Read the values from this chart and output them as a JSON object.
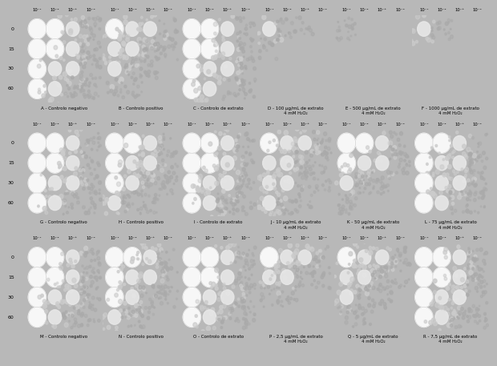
{
  "figure_bg": "#b8b8b8",
  "panel_bg": "#000000",
  "rows": 3,
  "cols": 6,
  "dilutions": [
    "10⁻¹",
    "10⁻²",
    "10⁻³",
    "10⁻⁴"
  ],
  "time_labels": [
    "0",
    "15",
    "30",
    "60"
  ],
  "panel_labels": [
    [
      "A - Controlo negativo",
      "B - Controlo positivo",
      "C - Controlo de extrato",
      "D - 100 μg/mL de extrato\n4 mM H₂O₂",
      "E - 500 μg/mL de extrato\n4 mM H₂O₂",
      "F - 1000 μg/mL de extrato\n4 mM H₂O₂"
    ],
    [
      "G - Controlo negativo",
      "H - Controlo positivo",
      "I - Controlo de extrato",
      "J - 10 μg/mL de extrato\n4 mM H₂O₂",
      "K - 50 μg/mL de extrato\n4 mM H₂O₂",
      "L - 75 μg/mL de extrato\n4 mM H₂O₂"
    ],
    [
      "M - Controlo negativo",
      "N - Controlo positivo",
      "O - Controlo de extrato",
      "P - 2,5 μg/mL de extrato\n4 mM H₂O₂",
      "Q - 5 μg/mL de extrato\n4 mM H₂O₂",
      "R - 7,5 μg/mL de extrato\n4 mM H₂O₂"
    ]
  ],
  "colony_data": [
    [
      [
        [
          3,
          3,
          2,
          1
        ],
        [
          3,
          3,
          2,
          1
        ],
        [
          3,
          2,
          2,
          1
        ],
        [
          3,
          2,
          1,
          1
        ]
      ],
      [
        [
          3,
          2,
          2,
          1
        ],
        [
          2,
          2,
          1,
          1
        ],
        [
          2,
          1,
          1,
          0
        ],
        [
          1,
          1,
          0,
          0
        ]
      ],
      [
        [
          3,
          3,
          2,
          1
        ],
        [
          3,
          3,
          2,
          1
        ],
        [
          3,
          2,
          2,
          1
        ],
        [
          3,
          2,
          1,
          1
        ]
      ],
      [
        [
          2,
          1,
          1,
          0
        ],
        [
          1,
          0,
          0,
          0
        ],
        [
          0,
          0,
          0,
          0
        ],
        [
          0,
          0,
          0,
          0
        ]
      ],
      [
        [
          1,
          0,
          0,
          0
        ],
        [
          0,
          0,
          0,
          0
        ],
        [
          0,
          0,
          0,
          0
        ],
        [
          0,
          0,
          0,
          0
        ]
      ],
      [
        [
          2,
          1,
          0,
          0
        ],
        [
          0,
          0,
          0,
          0
        ],
        [
          0,
          0,
          0,
          0
        ],
        [
          0,
          0,
          0,
          0
        ]
      ]
    ],
    [
      [
        [
          3,
          3,
          2,
          1
        ],
        [
          3,
          3,
          2,
          1
        ],
        [
          3,
          2,
          2,
          1
        ],
        [
          3,
          2,
          1,
          1
        ]
      ],
      [
        [
          3,
          3,
          2,
          1
        ],
        [
          3,
          2,
          2,
          1
        ],
        [
          3,
          2,
          1,
          1
        ],
        [
          2,
          1,
          1,
          0
        ]
      ],
      [
        [
          3,
          3,
          2,
          1
        ],
        [
          3,
          3,
          2,
          1
        ],
        [
          3,
          2,
          2,
          1
        ],
        [
          3,
          2,
          1,
          1
        ]
      ],
      [
        [
          3,
          2,
          2,
          1
        ],
        [
          2,
          2,
          1,
          1
        ],
        [
          2,
          2,
          1,
          1
        ],
        [
          2,
          1,
          1,
          0
        ]
      ],
      [
        [
          3,
          3,
          2,
          1
        ],
        [
          3,
          2,
          2,
          1
        ],
        [
          2,
          1,
          1,
          0
        ],
        [
          1,
          0,
          0,
          0
        ]
      ],
      [
        [
          3,
          3,
          2,
          1
        ],
        [
          3,
          2,
          2,
          1
        ],
        [
          3,
          2,
          2,
          1
        ],
        [
          3,
          2,
          1,
          1
        ]
      ]
    ],
    [
      [
        [
          3,
          3,
          2,
          1
        ],
        [
          3,
          3,
          2,
          1
        ],
        [
          3,
          2,
          2,
          1
        ],
        [
          3,
          2,
          1,
          1
        ]
      ],
      [
        [
          3,
          3,
          2,
          1
        ],
        [
          3,
          2,
          2,
          1
        ],
        [
          3,
          2,
          1,
          1
        ],
        [
          2,
          1,
          1,
          0
        ]
      ],
      [
        [
          3,
          3,
          2,
          1
        ],
        [
          3,
          3,
          2,
          1
        ],
        [
          3,
          2,
          2,
          1
        ],
        [
          3,
          2,
          1,
          1
        ]
      ],
      [
        [
          3,
          2,
          2,
          1
        ],
        [
          2,
          2,
          1,
          1
        ],
        [
          1,
          1,
          0,
          0
        ],
        [
          0,
          0,
          0,
          0
        ]
      ],
      [
        [
          3,
          2,
          2,
          1
        ],
        [
          2,
          2,
          1,
          1
        ],
        [
          2,
          1,
          1,
          0
        ],
        [
          1,
          1,
          0,
          0
        ]
      ],
      [
        [
          3,
          3,
          2,
          1
        ],
        [
          3,
          3,
          2,
          1
        ],
        [
          3,
          2,
          2,
          1
        ],
        [
          3,
          2,
          1,
          1
        ]
      ]
    ]
  ]
}
